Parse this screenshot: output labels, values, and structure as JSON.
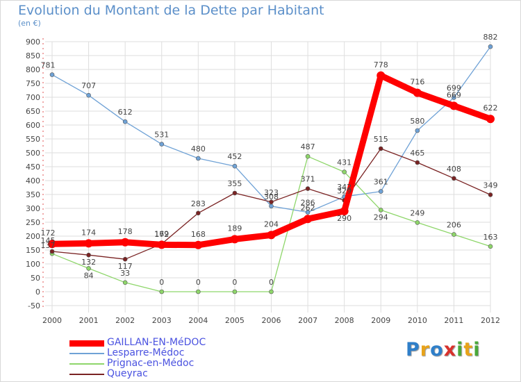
{
  "header": {
    "title": "Evolution du Montant de la Dette par Habitant",
    "subtitle": "(en €)"
  },
  "logo": {
    "text": "Proxiti",
    "letters": [
      {
        "ch": "P",
        "color": "#2f7fc9"
      },
      {
        "ch": "r",
        "color": "#e8a31a"
      },
      {
        "ch": "o",
        "color": "#2f7fc9"
      },
      {
        "ch": "x",
        "color": "#d8312c"
      },
      {
        "ch": "i",
        "color": "#4aa83a"
      },
      {
        "ch": "t",
        "color": "#e8a31a"
      },
      {
        "ch": "i",
        "color": "#4aa83a"
      }
    ]
  },
  "chart_data": {
    "type": "line",
    "title": "Evolution du Montant de la Dette par Habitant",
    "subtitle": "(en €)",
    "x": [
      "2000",
      "2001",
      "2002",
      "2003",
      "2004",
      "2005",
      "2006",
      "2007",
      "2008",
      "2009",
      "2010",
      "2011",
      "2012"
    ],
    "y_ticks": [
      -50,
      0,
      50,
      100,
      150,
      200,
      250,
      300,
      350,
      400,
      450,
      500,
      550,
      600,
      650,
      700,
      750,
      800,
      850,
      900
    ],
    "ylim": [
      -50,
      900
    ],
    "grid": true,
    "legend_position": "bottom-left",
    "series": [
      {
        "name": "GAILLAN-EN-MéDOC",
        "color": "#ff0000",
        "values": [
          172,
          174,
          178,
          169,
          168,
          189,
          204,
          262,
          290,
          778,
          716,
          669,
          622
        ]
      },
      {
        "name": "Lesparre-Médoc",
        "color": "#6fa2d6",
        "values": [
          781,
          707,
          612,
          531,
          480,
          452,
          308,
          286,
          342,
          361,
          580,
          699,
          882
        ]
      },
      {
        "name": "Prignac-en-Médoc",
        "color": "#8ed66a",
        "values": [
          137,
          84,
          33,
          0,
          0,
          0,
          0,
          487,
          431,
          294,
          249,
          206,
          163
        ]
      },
      {
        "name": "Queyrac",
        "color": "#7a2323",
        "values": [
          145,
          132,
          117,
          172,
          283,
          355,
          323,
          371,
          329,
          515,
          465,
          408,
          349
        ]
      }
    ]
  }
}
